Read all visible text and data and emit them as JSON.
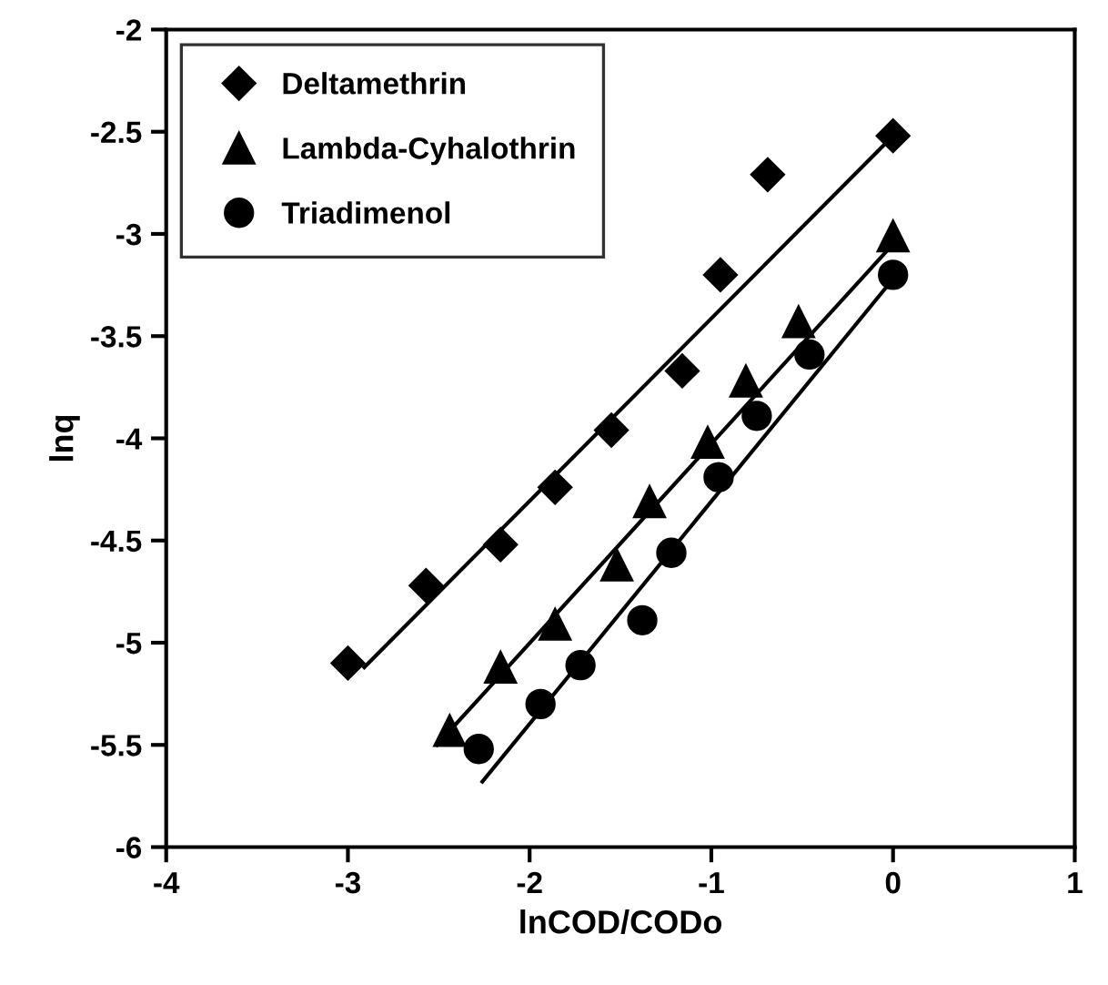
{
  "chart_data": {
    "type": "scatter",
    "xlabel": "lnCOD/CODo",
    "ylabel": "lnq",
    "xlim": [
      -4,
      1
    ],
    "xticks": [
      -4,
      -3,
      -2,
      -1,
      0,
      1
    ],
    "ylim": [
      -6,
      -2
    ],
    "yticks": [
      -6,
      -5.5,
      -5,
      -4.5,
      -4,
      -3.5,
      -3,
      -2.5,
      -2
    ],
    "grid": false,
    "legend": "top left",
    "series": [
      {
        "name": "Deltamethrin",
        "color": "#000000",
        "marker": "diamond",
        "x": [
          -3.0,
          -2.57,
          -2.16,
          -1.86,
          -1.55,
          -1.16,
          -0.95,
          -0.69,
          0
        ],
        "values": [
          -5.1,
          -4.72,
          -4.52,
          -4.24,
          -3.96,
          -3.67,
          -3.2,
          -2.71,
          -2.52
        ]
      },
      {
        "name": "Lambda-Cyhalothrin",
        "color": "#000000",
        "marker": "triangle",
        "x": [
          -2.44,
          -2.16,
          -1.86,
          -1.52,
          -1.34,
          -1.02,
          -0.81,
          -0.52,
          0
        ],
        "values": [
          -5.43,
          -5.12,
          -4.91,
          -4.62,
          -4.31,
          -4.02,
          -3.72,
          -3.43,
          -3.01
        ]
      },
      {
        "name": "Triadimenol",
        "color": "#000000",
        "marker": "circle",
        "x": [
          -2.28,
          -1.94,
          -1.72,
          -1.38,
          -1.22,
          -0.96,
          -0.75,
          -0.46,
          0
        ],
        "values": [
          -5.52,
          -5.3,
          -5.11,
          -4.89,
          -4.56,
          -4.19,
          -3.89,
          -3.59,
          -3.2
        ]
      },
      {
        "type": "line",
        "color": "#000000",
        "marker": "none",
        "x": [
          -2.91,
          0
        ],
        "values": [
          -5.12,
          -2.52
        ]
      },
      {
        "type": "line",
        "color": "#000000",
        "marker": "none",
        "x": [
          -2.51,
          0
        ],
        "values": [
          -5.5,
          -3.05
        ]
      },
      {
        "type": "line",
        "color": "#000000",
        "marker": "none",
        "x": [
          -2.26,
          0
        ],
        "values": [
          -5.68,
          -3.22
        ]
      }
    ]
  }
}
